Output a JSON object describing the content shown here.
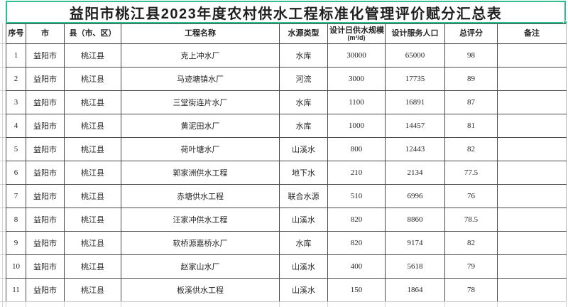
{
  "title": "益阳市桃江县2023年度农村供水工程标准化管理评价赋分汇总表",
  "table": {
    "columns": [
      "序号",
      "市",
      "县（市、区）",
      "工程名称",
      "水源类型",
      "设计日供水规模",
      "设计服务人口",
      "总评分",
      "备注"
    ],
    "capacity_unit": "(m³/d)",
    "column_keys": [
      "index",
      "city",
      "county",
      "project-name",
      "water-source",
      "daily-capacity",
      "population",
      "score",
      "remark"
    ],
    "rows": [
      [
        "1",
        "益阳市",
        "桃江县",
        "克上冲水厂",
        "水库",
        "30000",
        "65000",
        "98",
        ""
      ],
      [
        "2",
        "益阳市",
        "桃江县",
        "马迹塘镇水厂",
        "河流",
        "3000",
        "17735",
        "89",
        ""
      ],
      [
        "3",
        "益阳市",
        "桃江县",
        "三堂街连片水厂",
        "水库",
        "1100",
        "16891",
        "87",
        ""
      ],
      [
        "4",
        "益阳市",
        "桃江县",
        "黄泥田水厂",
        "水库",
        "1000",
        "14457",
        "81",
        ""
      ],
      [
        "5",
        "益阳市",
        "桃江县",
        "荷叶塘水厂",
        "山溪水",
        "800",
        "12443",
        "82",
        ""
      ],
      [
        "6",
        "益阳市",
        "桃江县",
        "郭家洲供水工程",
        "地下水",
        "210",
        "2134",
        "77.5",
        ""
      ],
      [
        "7",
        "益阳市",
        "桃江县",
        "赤塘供水工程",
        "联合水源",
        "510",
        "6996",
        "76",
        ""
      ],
      [
        "8",
        "益阳市",
        "桃江县",
        "汪家冲供水工程",
        "山溪水",
        "820",
        "8860",
        "78.5",
        ""
      ],
      [
        "9",
        "益阳市",
        "桃江县",
        "软桥源嘉桥水厂",
        "水库",
        "820",
        "9174",
        "82",
        ""
      ],
      [
        "10",
        "益阳市",
        "桃江县",
        "赵家山水厂",
        "山溪水",
        "400",
        "5618",
        "79",
        ""
      ],
      [
        "11",
        "益阳市",
        "桃江县",
        "板溪供水工程",
        "山溪水",
        "150",
        "1864",
        "78",
        ""
      ]
    ]
  },
  "colors": {
    "selection_green": "#2fbe8c",
    "grid_dark": "#4b4b4b",
    "grid_light": "#c9c9c9"
  }
}
